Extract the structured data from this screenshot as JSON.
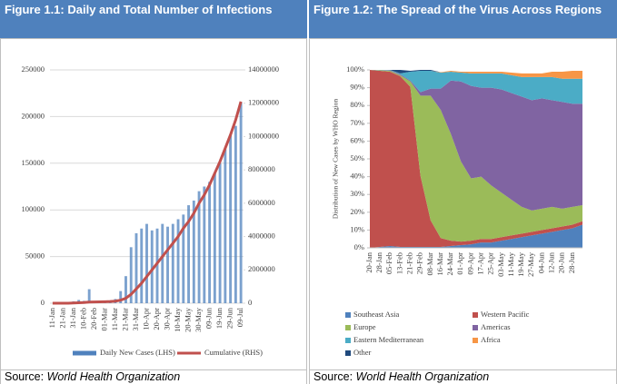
{
  "chart_data": [
    {
      "type": "combo",
      "title": "Figure 1.1: Daily and Total Number of Infections",
      "source": {
        "label": "Source:",
        "text": "World Health Organization"
      },
      "categories": [
        "11-Jan",
        null,
        "21-Jan",
        null,
        "31-Jan",
        null,
        "10-Feb",
        null,
        "20-Feb",
        null,
        "01-Mar",
        null,
        "11-Mar",
        null,
        "21-Mar",
        null,
        "31-Mar",
        null,
        "10-Apr",
        null,
        "20-Apr",
        null,
        "30-Apr",
        null,
        "10-May",
        null,
        "20-May",
        null,
        "30-May",
        null,
        "09-Jun",
        null,
        "19-Jun",
        null,
        "29-Jun",
        null,
        "09-Jul"
      ],
      "series": [
        {
          "name": "Daily New Cases (LHS)",
          "color": "#4f81bd",
          "mark": "bar",
          "values": [
            0,
            0,
            100,
            700,
            2000,
            3500,
            2500,
            15000,
            600,
            900,
            1800,
            3000,
            4500,
            13000,
            29000,
            60000,
            75000,
            80000,
            85000,
            78000,
            80000,
            85000,
            82000,
            85000,
            90000,
            95000,
            105000,
            110000,
            120000,
            125000,
            130000,
            140000,
            150000,
            165000,
            180000,
            190000,
            215000
          ]
        },
        {
          "name": "Cumulative (RHS)",
          "color": "#c0504d",
          "mark": "line",
          "axis": "y2",
          "values": [
            0,
            0,
            400,
            2800,
            12000,
            28000,
            43000,
            68000,
            76000,
            81000,
            88000,
            100000,
            125000,
            180000,
            300000,
            530000,
            860000,
            1200000,
            1600000,
            2000000,
            2400000,
            2800000,
            3200000,
            3600000,
            4000000,
            4500000,
            4900000,
            5400000,
            6000000,
            6500000,
            7100000,
            7800000,
            8500000,
            9300000,
            10100000,
            11000000,
            12100000
          ]
        }
      ],
      "ylim": [
        0,
        250000
      ],
      "yticks": [
        0,
        50000,
        100000,
        150000,
        200000,
        250000
      ],
      "y2lim": [
        0,
        14000000
      ],
      "y2ticks": [
        0,
        2000000,
        4000000,
        6000000,
        8000000,
        10000000,
        12000000,
        14000000
      ],
      "grid": true,
      "legend": "bottom"
    },
    {
      "type": "area",
      "title": "Figure 1.2: The Spread of the Virus Across Regions",
      "source": {
        "label": "Source:",
        "text": "World Health Organization"
      },
      "y_label": "Distribution of New Cases by WHO Region",
      "categories": [
        "20-Jan",
        "28-Jan",
        "05-Feb",
        "13-Feb",
        "21-Feb",
        "29-Feb",
        "08-Mar",
        "16-Mar",
        "24-Mar",
        "01-Apr",
        "09-Apr",
        "17-Apr",
        "25-Apr",
        "03-May",
        "11-May",
        "19-May",
        "27-May",
        "04-Jun",
        "12-Jun",
        "20-Jun",
        "28-Jun",
        null
      ],
      "series": [
        {
          "name": "Southeast Asia",
          "color": "#4f81bd",
          "values": [
            0,
            0.5,
            1,
            0.5,
            0.5,
            0.5,
            0.5,
            0.5,
            1,
            1.5,
            2,
            3,
            3,
            4,
            5,
            6,
            7,
            8,
            9,
            10,
            11,
            13
          ]
        },
        {
          "name": "Western Pacific",
          "color": "#c0504d",
          "values": [
            100,
            99,
            98,
            96,
            90,
            40,
            15,
            5,
            3,
            2,
            2,
            2,
            2,
            2,
            2,
            2,
            2,
            2,
            2,
            2,
            2,
            2
          ]
        },
        {
          "name": "Europe",
          "color": "#9bbb59",
          "values": [
            0,
            0.3,
            0.5,
            0.5,
            3,
            45,
            70,
            72,
            60,
            45,
            35,
            35,
            30,
            25,
            20,
            15,
            12,
            12,
            12,
            10,
            10,
            9
          ]
        },
        {
          "name": "Americas",
          "color": "#8064a2",
          "values": [
            0,
            0.1,
            0.3,
            0.5,
            0.5,
            2,
            4,
            12,
            30,
            45,
            52,
            50,
            55,
            58,
            60,
            62,
            62,
            62,
            60,
            60,
            58,
            57
          ]
        },
        {
          "name": "Eastern Mediterranean",
          "color": "#4bacc6",
          "values": [
            0,
            0.1,
            0.2,
            0.5,
            5,
            12,
            10,
            9,
            5,
            5,
            7,
            8,
            8,
            9,
            10,
            11,
            13,
            12,
            13,
            13,
            14,
            14
          ]
        },
        {
          "name": "Africa",
          "color": "#f79646",
          "values": [
            0,
            0,
            0,
            0,
            0,
            0,
            0,
            0.2,
            0.5,
            0.5,
            1,
            1,
            1,
            1,
            1.5,
            2,
            2,
            2,
            3,
            4,
            4.5,
            4.5
          ]
        },
        {
          "name": "Other",
          "color": "#1f497d",
          "values": [
            0,
            0,
            0,
            2,
            0.5,
            0.5,
            0.5,
            0,
            0,
            0,
            0,
            0,
            0,
            0,
            0,
            0,
            0,
            0,
            0,
            0,
            0,
            0
          ]
        }
      ],
      "ylim": [
        0,
        100
      ],
      "yticks": [
        {
          "value": 0,
          "label": "0%"
        },
        {
          "value": 10,
          "label": "10%"
        },
        {
          "value": 20,
          "label": "20%"
        },
        {
          "value": 30,
          "label": "30%"
        },
        {
          "value": 40,
          "label": "40%"
        },
        {
          "value": 50,
          "label": "50%"
        },
        {
          "value": 60,
          "label": "60%"
        },
        {
          "value": 70,
          "label": "70%"
        },
        {
          "value": 80,
          "label": "80%"
        },
        {
          "value": 90,
          "label": "90%"
        },
        {
          "value": 100,
          "label": "100%"
        }
      ],
      "stacked": true,
      "legend": "bottom"
    }
  ]
}
